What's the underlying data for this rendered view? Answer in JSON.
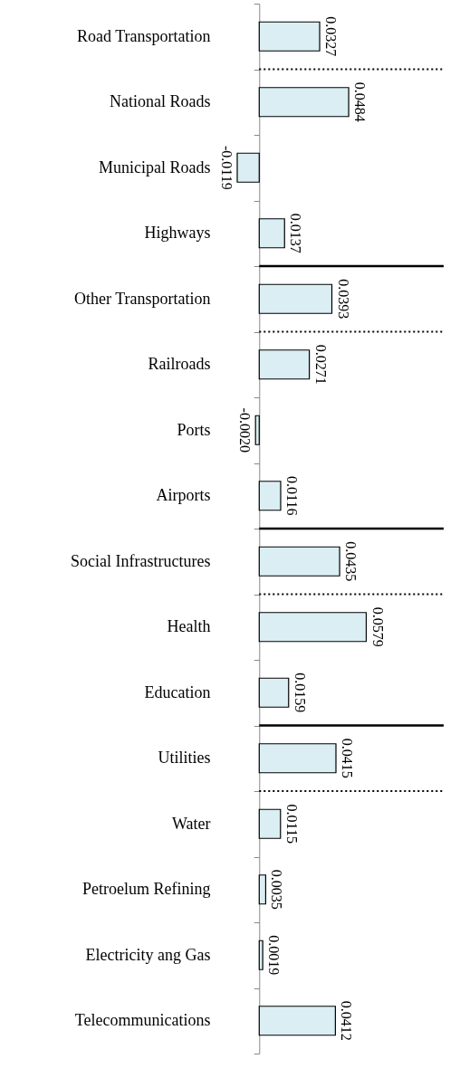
{
  "chart_data": {
    "type": "bar",
    "orientation": "horizontal",
    "data_labels": true,
    "categories": [
      "Road Transportation",
      "National Roads",
      "Municipal Roads",
      "Highways",
      "Other Transportation",
      "Railroads",
      "Ports",
      "Airports",
      "Social Infrastructures",
      "Health",
      "Education",
      "Utilities",
      "Water",
      "Petroelum Refining",
      "Electricity ang Gas",
      "Telecommunications"
    ],
    "values": [
      0.0327,
      0.0484,
      -0.0119,
      0.0137,
      0.0393,
      0.0271,
      -0.002,
      0.0116,
      0.0435,
      0.0579,
      0.0159,
      0.0415,
      0.0115,
      0.0035,
      0.0019,
      0.0412
    ],
    "value_labels": [
      "0.0327",
      "0.0484",
      "-0.0119",
      "0.0137",
      "0.0393",
      "0.0271",
      "-0.0020",
      "0.0116",
      "0.0435",
      "0.0579",
      "0.0159",
      "0.0415",
      "0.0115",
      "0.0035",
      "0.0019",
      "0.0412"
    ],
    "color": "#daeef3",
    "ref_lines": [
      {
        "axis": "y",
        "value": "Road Transportation",
        "line_style": "dotted"
      },
      {
        "axis": "y",
        "value": "Highways",
        "line_style": "solid"
      },
      {
        "axis": "y",
        "value": "Other Transportation",
        "line_style": "dotted"
      },
      {
        "axis": "y",
        "value": "Airports",
        "line_style": "solid"
      },
      {
        "axis": "y",
        "value": "Social Infrastructures",
        "line_style": "dotted"
      },
      {
        "axis": "y",
        "value": "Education",
        "line_style": "solid"
      },
      {
        "axis": "y",
        "value": "Utilities",
        "line_style": "dotted"
      }
    ]
  }
}
